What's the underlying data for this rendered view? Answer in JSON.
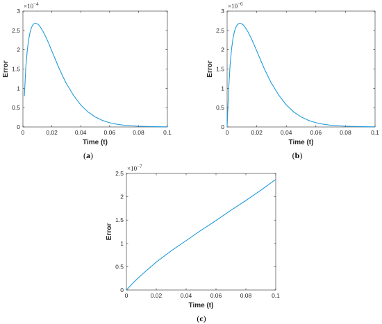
{
  "chart_data": [
    {
      "type": "line",
      "caption_letter": "a",
      "xlabel": "Time (t)",
      "ylabel": "Error",
      "y_multiplier": "×10",
      "y_exponent": "−4",
      "xlim": [
        0,
        0.1
      ],
      "ylim": [
        0,
        3
      ],
      "xticks": [
        "0",
        "0.02",
        "0.04",
        "0.06",
        "0.08",
        "0.1"
      ],
      "yticks": [
        "0",
        "0.5",
        "1",
        "1.5",
        "2",
        "2.5",
        "3"
      ],
      "series": [
        {
          "color": "#1f9bd7",
          "x": [
            0.001,
            0.002,
            0.003,
            0.004,
            0.005,
            0.006,
            0.007,
            0.008,
            0.009,
            0.01,
            0.011,
            0.012,
            0.014,
            0.016,
            0.018,
            0.02,
            0.022,
            0.025,
            0.028,
            0.03,
            0.035,
            0.04,
            0.045,
            0.05,
            0.055,
            0.06,
            0.065,
            0.07,
            0.08,
            0.09,
            0.1
          ],
          "y": [
            0.8,
            1.55,
            1.98,
            2.27,
            2.46,
            2.58,
            2.65,
            2.68,
            2.68,
            2.67,
            2.64,
            2.59,
            2.47,
            2.32,
            2.15,
            1.97,
            1.79,
            1.52,
            1.28,
            1.13,
            0.82,
            0.57,
            0.39,
            0.26,
            0.17,
            0.11,
            0.07,
            0.045,
            0.02,
            0.008,
            0.003
          ]
        }
      ]
    },
    {
      "type": "line",
      "caption_letter": "b",
      "xlabel": "Time (t)",
      "ylabel": "Error",
      "y_multiplier": "×10",
      "y_exponent": "−6",
      "xlim": [
        0,
        0.1
      ],
      "ylim": [
        0,
        3
      ],
      "xticks": [
        "0",
        "0.02",
        "0.04",
        "0.06",
        "0.08",
        "0.1"
      ],
      "yticks": [
        "0",
        "0.5",
        "1",
        "1.5",
        "2",
        "2.5",
        "3"
      ],
      "series": [
        {
          "color": "#1f9bd7",
          "x": [
            0,
            0.001,
            0.002,
            0.003,
            0.004,
            0.005,
            0.006,
            0.007,
            0.008,
            0.009,
            0.01,
            0.011,
            0.012,
            0.014,
            0.016,
            0.018,
            0.02,
            0.022,
            0.025,
            0.028,
            0.03,
            0.035,
            0.04,
            0.045,
            0.05,
            0.055,
            0.06,
            0.065,
            0.07,
            0.08,
            0.09,
            0.1
          ],
          "y": [
            0,
            0.95,
            1.6,
            2.02,
            2.3,
            2.48,
            2.59,
            2.65,
            2.68,
            2.68,
            2.67,
            2.64,
            2.59,
            2.47,
            2.32,
            2.15,
            1.97,
            1.79,
            1.52,
            1.28,
            1.13,
            0.82,
            0.57,
            0.39,
            0.26,
            0.17,
            0.11,
            0.07,
            0.045,
            0.02,
            0.008,
            0.003
          ]
        }
      ]
    },
    {
      "type": "line",
      "caption_letter": "c",
      "xlabel": "Time (t)",
      "ylabel": "Error",
      "y_multiplier": "×10",
      "y_exponent": "−7",
      "xlim": [
        0,
        0.1
      ],
      "ylim": [
        0,
        2.5
      ],
      "xticks": [
        "0",
        "0.02",
        "0.04",
        "0.06",
        "0.08",
        "0.1"
      ],
      "yticks": [
        "0",
        "0.5",
        "1",
        "1.5",
        "2",
        "2.5"
      ],
      "series": [
        {
          "color": "#1f9bd7",
          "x": [
            0,
            0.005,
            0.01,
            0.02,
            0.03,
            0.04,
            0.05,
            0.06,
            0.07,
            0.08,
            0.09,
            0.1
          ],
          "y": [
            0,
            0.17,
            0.32,
            0.6,
            0.84,
            1.06,
            1.28,
            1.49,
            1.71,
            1.92,
            2.14,
            2.37
          ]
        }
      ]
    }
  ]
}
